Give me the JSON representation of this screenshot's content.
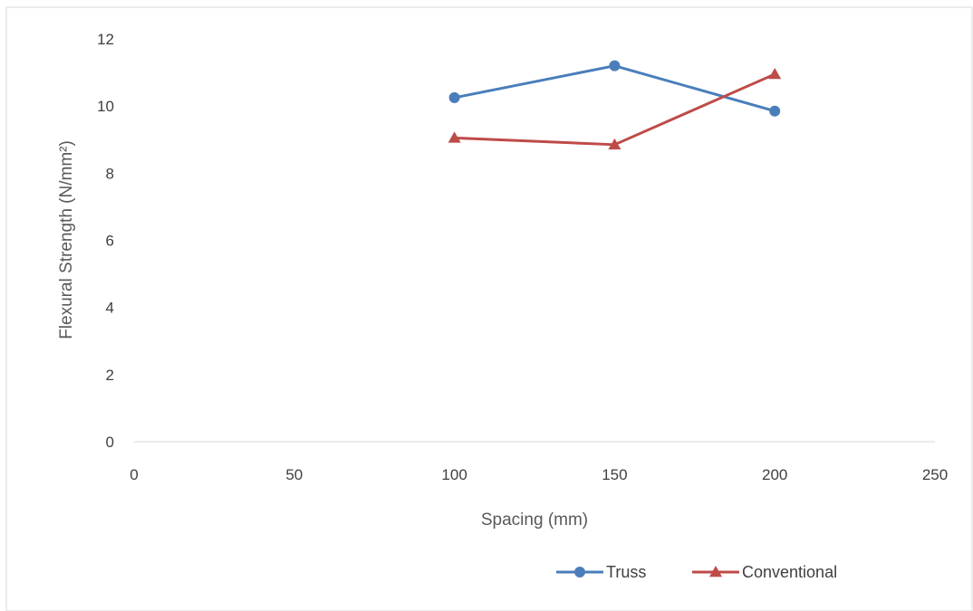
{
  "chart_data": {
    "type": "line",
    "title": "",
    "xlabel": "Spacing (mm)",
    "ylabel": "Flexural Strength (N/mm²)",
    "xlim": [
      0,
      250
    ],
    "ylim": [
      0,
      12
    ],
    "xticks": [
      0,
      50,
      100,
      150,
      200,
      250
    ],
    "yticks": [
      0,
      2,
      4,
      6,
      8,
      10,
      12
    ],
    "grid": false,
    "legend_position": "bottom-right",
    "series": [
      {
        "name": "Truss",
        "color": "#4a7ebb",
        "marker": "circle",
        "x": [
          100,
          150,
          200
        ],
        "y": [
          10.25,
          11.2,
          9.85
        ]
      },
      {
        "name": "Conventional",
        "color": "#be4b48",
        "marker": "triangle",
        "x": [
          100,
          150,
          200
        ],
        "y": [
          9.05,
          8.85,
          10.95
        ]
      }
    ]
  }
}
